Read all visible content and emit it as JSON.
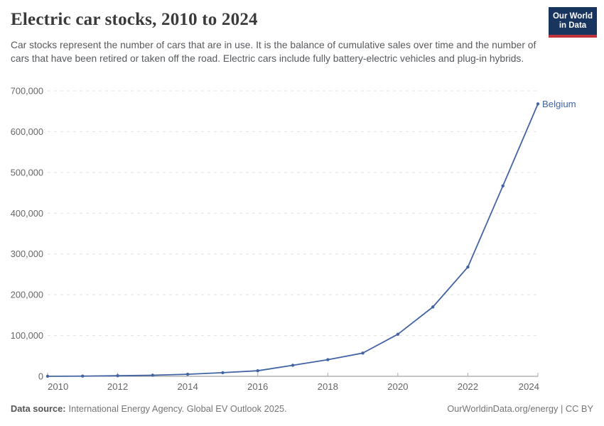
{
  "header": {
    "title": "Electric car stocks, 2010 to 2024",
    "subtitle": "Car stocks represent the number of cars that are in use. It is the balance of cumulative sales over time and the number of cars that have been retired or taken off the road. Electric cars include fully battery-electric vehicles and plug-in hybrids.",
    "logo": {
      "line1": "Our World",
      "line2": "in Data"
    }
  },
  "chart_data": {
    "type": "line",
    "title": "Electric car stocks, 2010 to 2024",
    "x": [
      2010,
      2011,
      2012,
      2013,
      2014,
      2015,
      2016,
      2017,
      2018,
      2019,
      2020,
      2021,
      2022,
      2023,
      2024
    ],
    "series": [
      {
        "name": "Belgium",
        "values": [
          38,
          500,
          1400,
          2600,
          5000,
          8900,
          13600,
          27000,
          40700,
          57000,
          103000,
          170000,
          268000,
          467000,
          668000
        ]
      }
    ],
    "xlabel": "",
    "ylabel": "",
    "xlim": [
      2010,
      2024
    ],
    "ylim": [
      0,
      700000
    ],
    "xticks": [
      2010,
      2012,
      2014,
      2016,
      2018,
      2020,
      2022,
      2024
    ],
    "yticks": [
      0,
      100000,
      200000,
      300000,
      400000,
      500000,
      600000,
      700000
    ],
    "grid": "horizontal-dashed",
    "legend_position": "end-of-line-label",
    "end_label": "Belgium"
  },
  "footer": {
    "source_label": "Data source:",
    "source_text": "International Energy Agency. Global EV Outlook 2025.",
    "credit": "OurWorldinData.org/energy | CC BY"
  },
  "colors": {
    "line": "#4264a3",
    "grid": "#e0e0e0",
    "axis": "#8c8c8c",
    "tick": "#a8a8a8",
    "tick_label": "#666666",
    "logo_bg": "#18355f",
    "logo_stripe": "#c0333c"
  }
}
